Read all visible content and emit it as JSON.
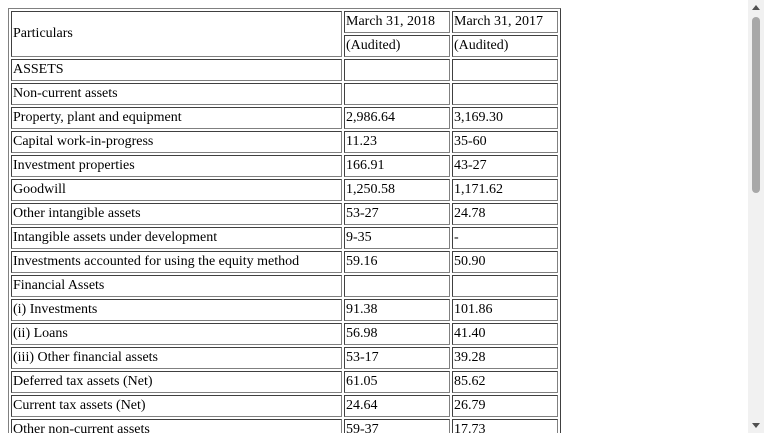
{
  "table": {
    "header": {
      "particulars": "Particulars",
      "col1_date": "March 31, 2018",
      "col1_status": "(Audited)",
      "col2_date": "March 31, 2017",
      "col2_status": "(Audited)"
    },
    "rows": [
      {
        "label": "ASSETS",
        "v1": "",
        "v2": ""
      },
      {
        "label": "Non-current assets",
        "v1": "",
        "v2": ""
      },
      {
        "label": "Property, plant and equipment",
        "v1": "2,986.64",
        "v2": "3,169.30"
      },
      {
        "label": "Capital work-in-progress",
        "v1": "11.23",
        "v2": "35-60"
      },
      {
        "label": "Investment properties",
        "v1": "166.91",
        "v2": "43-27"
      },
      {
        "label": "Goodwill",
        "v1": "1,250.58",
        "v2": "1,171.62"
      },
      {
        "label": "Other intangible assets",
        "v1": "53-27",
        "v2": "24.78"
      },
      {
        "label": "Intangible assets under development",
        "v1": "9-35",
        "v2": "-"
      },
      {
        "label": "Investments accounted for using the equity method",
        "v1": "59.16",
        "v2": "50.90"
      },
      {
        "label": "Financial Assets",
        "v1": "",
        "v2": ""
      },
      {
        "label": "(i) Investments",
        "v1": "91.38",
        "v2": "101.86"
      },
      {
        "label": "(ii) Loans",
        "v1": "56.98",
        "v2": "41.40"
      },
      {
        "label": "(iii) Other financial assets",
        "v1": "53-17",
        "v2": "39.28"
      },
      {
        "label": "Deferred tax assets (Net)",
        "v1": "61.05",
        "v2": "85.62"
      },
      {
        "label": "Current tax assets (Net)",
        "v1": "24.64",
        "v2": "26.79"
      },
      {
        "label": "Other non-current assets",
        "v1": "59-37",
        "v2": "17.73"
      }
    ]
  }
}
